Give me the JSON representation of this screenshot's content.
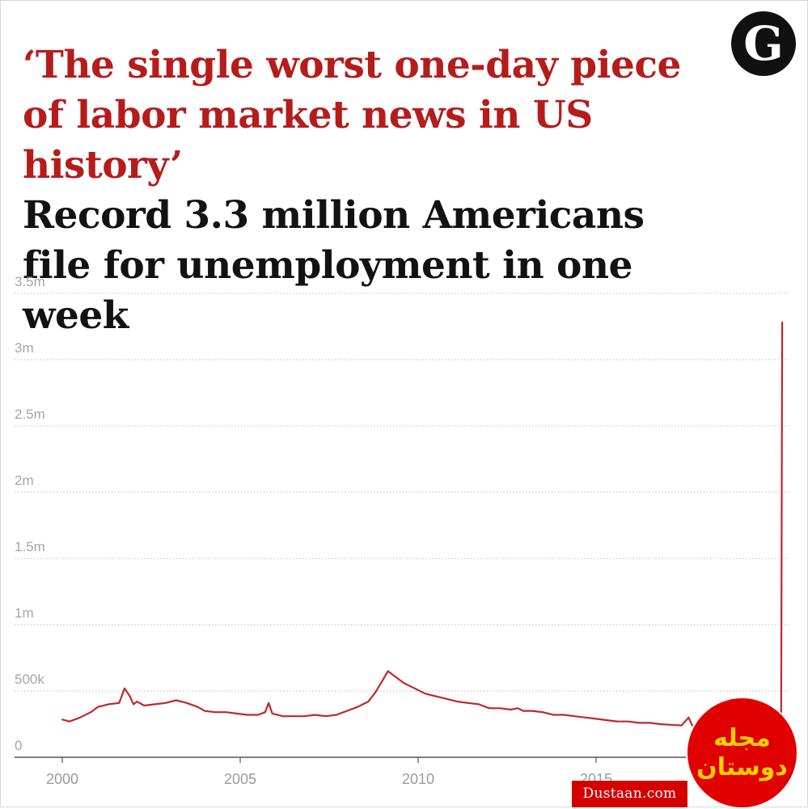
{
  "headline": {
    "quote": "‘The single worst one-day piece of labor market news in US history’",
    "subtitle": "Record 3.3 million Americans file for unemployment in one week"
  },
  "logo": {
    "letter": "G",
    "icon": "guardian-logo-icon",
    "background": "#111111"
  },
  "watermark": {
    "site": "Dustaan.com",
    "mark": "مجله دوستان",
    "color": "#e00000"
  },
  "colors": {
    "series": "#c0272d",
    "title_accent": "#b51c1c",
    "grid": "#bdbdbd",
    "axis": "#555555"
  },
  "chart_data": {
    "type": "line",
    "title": "‘The single worst one-day piece of labor market news in US history’",
    "subtitle": "Record 3.3 million Americans file for unemployment in one week",
    "xlabel": "",
    "ylabel": "",
    "x_ticks": [
      "2000",
      "2005",
      "2010",
      "2015"
    ],
    "y_ticks": [
      "3.5m",
      "3m",
      "2.5m",
      "2m",
      "1.5m",
      "1m",
      "500k",
      "0"
    ],
    "ylim": [
      0,
      3500000
    ],
    "xlim": [
      2000,
      2020.3
    ],
    "grid": "horizontal dotted",
    "legend": "none",
    "series": [
      {
        "x": [
          2000.0,
          2000.2,
          2000.5,
          2000.8,
          2001.0,
          2001.3,
          2001.6,
          2001.75,
          2001.9,
          2002.0,
          2002.1,
          2002.3,
          2002.6,
          2002.9,
          2003.2,
          2003.5,
          2003.8,
          2004.0,
          2004.3,
          2004.6,
          2004.9,
          2005.2,
          2005.5,
          2005.7,
          2005.8,
          2005.9,
          2006.2,
          2006.5,
          2006.8,
          2007.1,
          2007.4,
          2007.7,
          2008.0,
          2008.3,
          2008.6,
          2008.8,
          2009.0,
          2009.15,
          2009.25,
          2009.4,
          2009.6,
          2009.9,
          2010.2,
          2010.5,
          2010.8,
          2011.1,
          2011.4,
          2011.7,
          2012.0,
          2012.3,
          2012.6,
          2012.8,
          2012.95,
          2013.2,
          2013.5,
          2013.8,
          2014.1,
          2014.4,
          2014.7,
          2015.0,
          2015.3,
          2015.6,
          2015.9,
          2016.2,
          2016.5,
          2016.8,
          2017.1,
          2017.4,
          2017.6,
          2017.7,
          2017.8,
          2018.0,
          2018.3,
          2018.6,
          2018.9,
          2019.2,
          2019.5,
          2019.8,
          2020.0,
          2020.1,
          2020.17,
          2020.2,
          2020.23
        ],
        "values": [
          285000,
          270000,
          300000,
          340000,
          380000,
          400000,
          410000,
          520000,
          460000,
          400000,
          420000,
          390000,
          400000,
          410000,
          430000,
          410000,
          380000,
          350000,
          340000,
          340000,
          330000,
          320000,
          320000,
          340000,
          410000,
          330000,
          310000,
          310000,
          310000,
          320000,
          310000,
          320000,
          350000,
          380000,
          420000,
          490000,
          580000,
          650000,
          630000,
          600000,
          560000,
          520000,
          480000,
          460000,
          440000,
          420000,
          410000,
          400000,
          370000,
          370000,
          360000,
          370000,
          350000,
          350000,
          340000,
          320000,
          320000,
          310000,
          300000,
          290000,
          280000,
          270000,
          270000,
          260000,
          260000,
          250000,
          245000,
          240000,
          300000,
          240000,
          230000,
          220000,
          215000,
          215000,
          220000,
          215000,
          215000,
          215000,
          210000,
          210000,
          220000,
          281000,
          3283000
        ]
      }
    ]
  }
}
